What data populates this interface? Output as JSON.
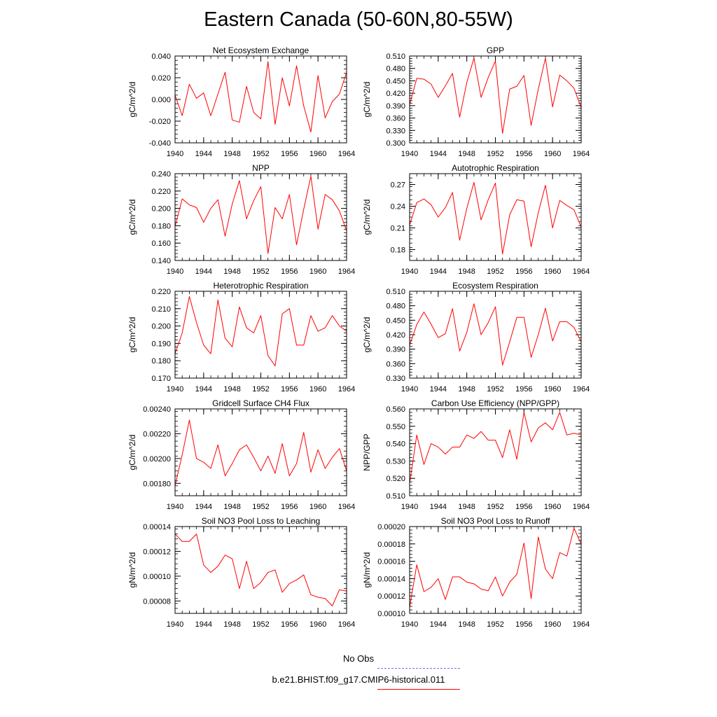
{
  "title": "Eastern Canada (50-60N,80-55W)",
  "colors": {
    "model": "#ff0000",
    "obs": "#7b68ee",
    "axis": "#000000"
  },
  "legend": {
    "items": [
      {
        "label": "No Obs",
        "style": "dashed",
        "color": "#7b68ee"
      },
      {
        "label": "b.e21.BHIST.f09_g17.CMIP6-historical.011",
        "style": "solid",
        "color": "#ff0000"
      }
    ]
  },
  "chart_data": [
    {
      "type": "line",
      "title": "Net Ecosystem Exchange",
      "ylabel": "gC/m^2/d",
      "xlim": [
        1940,
        1964
      ],
      "ylim": [
        -0.04,
        0.04
      ],
      "xticks": [
        "1940",
        "1944",
        "1948",
        "1952",
        "1956",
        "1960",
        "1964"
      ],
      "yticks": [
        "-0.040",
        "-0.020",
        "0.000",
        "0.020",
        "0.040"
      ],
      "x": [
        1940,
        1941,
        1942,
        1943,
        1944,
        1945,
        1946,
        1947,
        1948,
        1949,
        1950,
        1951,
        1952,
        1953,
        1954,
        1955,
        1956,
        1957,
        1958,
        1959,
        1960,
        1961,
        1962,
        1963,
        1964
      ],
      "series": [
        {
          "name": "b.e21.BHIST.f09_g17.CMIP6-historical.011",
          "values": [
            0.004,
            -0.015,
            0.014,
            0.001,
            0.006,
            -0.015,
            0.005,
            0.025,
            -0.019,
            -0.021,
            0.012,
            -0.012,
            -0.018,
            0.035,
            -0.023,
            0.02,
            -0.006,
            0.031,
            -0.006,
            -0.03,
            0.022,
            -0.017,
            -0.002,
            0.005,
            0.025
          ]
        }
      ]
    },
    {
      "type": "line",
      "title": "GPP",
      "ylabel": "gC/m^2/d",
      "xlim": [
        1940,
        1964
      ],
      "ylim": [
        0.3,
        0.51
      ],
      "xticks": [
        "1940",
        "1944",
        "1948",
        "1952",
        "1956",
        "1960",
        "1964"
      ],
      "yticks": [
        "0.300",
        "0.330",
        "0.360",
        "0.390",
        "0.420",
        "0.450",
        "0.480",
        "0.510"
      ],
      "x": [
        1940,
        1941,
        1942,
        1943,
        1944,
        1945,
        1946,
        1947,
        1948,
        1949,
        1950,
        1951,
        1952,
        1953,
        1954,
        1955,
        1956,
        1957,
        1958,
        1959,
        1960,
        1961,
        1962,
        1963,
        1964
      ],
      "series": [
        {
          "name": "b.e21.BHIST.f09_g17.CMIP6-historical.011",
          "values": [
            0.392,
            0.456,
            0.454,
            0.442,
            0.41,
            0.438,
            0.468,
            0.362,
            0.446,
            0.505,
            0.41,
            0.458,
            0.498,
            0.323,
            0.43,
            0.437,
            0.463,
            0.342,
            0.43,
            0.505,
            0.387,
            0.464,
            0.45,
            0.432,
            0.385
          ]
        }
      ]
    },
    {
      "type": "line",
      "title": "NPP",
      "ylabel": "gC/m^2/d",
      "xlim": [
        1940,
        1964
      ],
      "ylim": [
        0.14,
        0.24
      ],
      "xticks": [
        "1940",
        "1944",
        "1948",
        "1952",
        "1956",
        "1960",
        "1964"
      ],
      "yticks": [
        "0.140",
        "0.160",
        "0.180",
        "0.200",
        "0.220",
        "0.240"
      ],
      "x": [
        1940,
        1941,
        1942,
        1943,
        1944,
        1945,
        1946,
        1947,
        1948,
        1949,
        1950,
        1951,
        1952,
        1953,
        1954,
        1955,
        1956,
        1957,
        1958,
        1959,
        1960,
        1961,
        1962,
        1963,
        1964
      ],
      "series": [
        {
          "name": "b.e21.BHIST.f09_g17.CMIP6-historical.011",
          "values": [
            0.179,
            0.211,
            0.204,
            0.201,
            0.184,
            0.2,
            0.21,
            0.168,
            0.205,
            0.232,
            0.188,
            0.209,
            0.225,
            0.148,
            0.201,
            0.188,
            0.216,
            0.158,
            0.199,
            0.237,
            0.176,
            0.216,
            0.21,
            0.197,
            0.174
          ]
        }
      ]
    },
    {
      "type": "line",
      "title": "Autotrophic Respiration",
      "ylabel": "gC/m^2/d",
      "xlim": [
        1940,
        1964
      ],
      "ylim": [
        0.165,
        0.285
      ],
      "xticks": [
        "1940",
        "1944",
        "1948",
        "1952",
        "1956",
        "1960",
        "1964"
      ],
      "yticks": [
        "0.18",
        "0.21",
        "0.24",
        "0.27"
      ],
      "x": [
        1940,
        1941,
        1942,
        1943,
        1944,
        1945,
        1946,
        1947,
        1948,
        1949,
        1950,
        1951,
        1952,
        1953,
        1954,
        1955,
        1956,
        1957,
        1958,
        1959,
        1960,
        1961,
        1962,
        1963,
        1964
      ],
      "series": [
        {
          "name": "b.e21.BHIST.f09_g17.CMIP6-historical.011",
          "values": [
            0.214,
            0.245,
            0.25,
            0.242,
            0.225,
            0.238,
            0.259,
            0.193,
            0.237,
            0.273,
            0.221,
            0.249,
            0.272,
            0.174,
            0.228,
            0.249,
            0.247,
            0.184,
            0.231,
            0.269,
            0.21,
            0.248,
            0.241,
            0.235,
            0.211
          ]
        }
      ]
    },
    {
      "type": "line",
      "title": "Heterotrophic Respiration",
      "ylabel": "gC/m^2/d",
      "xlim": [
        1940,
        1964
      ],
      "ylim": [
        0.17,
        0.22
      ],
      "xticks": [
        "1940",
        "1944",
        "1948",
        "1952",
        "1956",
        "1960",
        "1964"
      ],
      "yticks": [
        "0.170",
        "0.180",
        "0.190",
        "0.200",
        "0.210",
        "0.220"
      ],
      "x": [
        1940,
        1941,
        1942,
        1943,
        1944,
        1945,
        1946,
        1947,
        1948,
        1949,
        1950,
        1951,
        1952,
        1953,
        1954,
        1955,
        1956,
        1957,
        1958,
        1959,
        1960,
        1961,
        1962,
        1963,
        1964
      ],
      "series": [
        {
          "name": "b.e21.BHIST.f09_g17.CMIP6-historical.011",
          "values": [
            0.184,
            0.196,
            0.217,
            0.202,
            0.189,
            0.184,
            0.215,
            0.193,
            0.188,
            0.211,
            0.199,
            0.196,
            0.206,
            0.183,
            0.177,
            0.207,
            0.21,
            0.189,
            0.189,
            0.206,
            0.197,
            0.199,
            0.206,
            0.2,
            0.197
          ]
        }
      ]
    },
    {
      "type": "line",
      "title": "Ecosystem Respiration",
      "ylabel": "gC/m^2/d",
      "xlim": [
        1940,
        1964
      ],
      "ylim": [
        0.33,
        0.51
      ],
      "xticks": [
        "1940",
        "1944",
        "1948",
        "1952",
        "1956",
        "1960",
        "1964"
      ],
      "yticks": [
        "0.330",
        "0.360",
        "0.390",
        "0.420",
        "0.450",
        "0.480",
        "0.510"
      ],
      "x": [
        1940,
        1941,
        1942,
        1943,
        1944,
        1945,
        1946,
        1947,
        1948,
        1949,
        1950,
        1951,
        1952,
        1953,
        1954,
        1955,
        1956,
        1957,
        1958,
        1959,
        1960,
        1961,
        1962,
        1963,
        1964
      ],
      "series": [
        {
          "name": "b.e21.BHIST.f09_g17.CMIP6-historical.011",
          "values": [
            0.398,
            0.441,
            0.467,
            0.442,
            0.414,
            0.422,
            0.474,
            0.386,
            0.425,
            0.484,
            0.42,
            0.445,
            0.478,
            0.357,
            0.405,
            0.456,
            0.456,
            0.373,
            0.42,
            0.475,
            0.407,
            0.447,
            0.447,
            0.435,
            0.405
          ]
        }
      ]
    },
    {
      "type": "line",
      "title": "Gridcell Surface CH4 Flux",
      "ylabel": "gC/m^2/d",
      "xlim": [
        1940,
        1964
      ],
      "ylim": [
        0.0017,
        0.0024
      ],
      "xticks": [
        "1940",
        "1944",
        "1948",
        "1952",
        "1956",
        "1960",
        "1964"
      ],
      "yticks": [
        "0.00180",
        "0.00200",
        "0.00220",
        "0.00240"
      ],
      "x": [
        1940,
        1941,
        1942,
        1943,
        1944,
        1945,
        1946,
        1947,
        1948,
        1949,
        1950,
        1951,
        1952,
        1953,
        1954,
        1955,
        1956,
        1957,
        1958,
        1959,
        1960,
        1961,
        1962,
        1963,
        1964
      ],
      "series": [
        {
          "name": "b.e21.BHIST.f09_g17.CMIP6-historical.011",
          "values": [
            0.00178,
            0.00203,
            0.00231,
            0.002,
            0.00197,
            0.00192,
            0.00211,
            0.00186,
            0.00196,
            0.00207,
            0.00211,
            0.00201,
            0.0019,
            0.00202,
            0.00188,
            0.00212,
            0.00186,
            0.00196,
            0.00221,
            0.00189,
            0.00207,
            0.00192,
            0.00201,
            0.00208,
            0.0019
          ]
        }
      ]
    },
    {
      "type": "line",
      "title": "Carbon Use Efficiency (NPP/GPP)",
      "ylabel": "NPP/GPP",
      "xlim": [
        1940,
        1964
      ],
      "ylim": [
        0.51,
        0.56
      ],
      "xticks": [
        "1940",
        "1944",
        "1948",
        "1952",
        "1956",
        "1960",
        "1964"
      ],
      "yticks": [
        "0.510",
        "0.520",
        "0.530",
        "0.540",
        "0.550",
        "0.560"
      ],
      "x": [
        1940,
        1941,
        1942,
        1943,
        1944,
        1945,
        1946,
        1947,
        1948,
        1949,
        1950,
        1951,
        1952,
        1953,
        1954,
        1955,
        1956,
        1957,
        1958,
        1959,
        1960,
        1961,
        1962,
        1963,
        1964
      ],
      "series": [
        {
          "name": "b.e21.BHIST.f09_g17.CMIP6-historical.011",
          "values": [
            0.517,
            0.545,
            0.528,
            0.54,
            0.538,
            0.534,
            0.538,
            0.538,
            0.545,
            0.543,
            0.547,
            0.542,
            0.542,
            0.532,
            0.548,
            0.531,
            0.558,
            0.541,
            0.549,
            0.552,
            0.548,
            0.558,
            0.545,
            0.546,
            0.545
          ]
        }
      ]
    },
    {
      "type": "line",
      "title": "Soil NO3 Pool Loss to Leaching",
      "ylabel": "gN/m^2/d",
      "xlim": [
        1940,
        1964
      ],
      "ylim": [
        7e-05,
        0.00014
      ],
      "xticks": [
        "1940",
        "1944",
        "1948",
        "1952",
        "1956",
        "1960",
        "1964"
      ],
      "yticks": [
        "0.00008",
        "0.00010",
        "0.00012",
        "0.00014"
      ],
      "x": [
        1940,
        1941,
        1942,
        1943,
        1944,
        1945,
        1946,
        1947,
        1948,
        1949,
        1950,
        1951,
        1952,
        1953,
        1954,
        1955,
        1956,
        1957,
        1958,
        1959,
        1960,
        1961,
        1962,
        1963,
        1964
      ],
      "series": [
        {
          "name": "b.e21.BHIST.f09_g17.CMIP6-historical.011",
          "values": [
            0.000134,
            0.000128,
            0.000128,
            0.000134,
            0.000109,
            0.000103,
            0.000108,
            0.000117,
            0.000114,
            9e-05,
            0.000112,
            9e-05,
            9.5e-05,
            0.000103,
            0.000105,
            8.7e-05,
            9.4e-05,
            9.7e-05,
            0.000101,
            8.5e-05,
            8.3e-05,
            8.2e-05,
            7.6e-05,
            8.9e-05,
            8.8e-05
          ]
        }
      ]
    },
    {
      "type": "line",
      "title": "Soil NO3 Pool Loss to Runoff",
      "ylabel": "gN/m^2/d",
      "xlim": [
        1940,
        1964
      ],
      "ylim": [
        0.0001,
        0.0002
      ],
      "xticks": [
        "1940",
        "1944",
        "1948",
        "1952",
        "1956",
        "1960",
        "1964"
      ],
      "yticks": [
        "0.00010",
        "0.00012",
        "0.00014",
        "0.00016",
        "0.00018",
        "0.00020"
      ],
      "x": [
        1940,
        1941,
        1942,
        1943,
        1944,
        1945,
        1946,
        1947,
        1948,
        1949,
        1950,
        1951,
        1952,
        1953,
        1954,
        1955,
        1956,
        1957,
        1958,
        1959,
        1960,
        1961,
        1962,
        1963,
        1964
      ],
      "series": [
        {
          "name": "b.e21.BHIST.f09_g17.CMIP6-historical.011",
          "values": [
            0.000107,
            0.000156,
            0.000125,
            0.00013,
            0.00014,
            0.000116,
            0.000142,
            0.000142,
            0.000136,
            0.000134,
            0.000128,
            0.000126,
            0.000142,
            0.00012,
            0.000136,
            0.000145,
            0.000181,
            0.000117,
            0.000188,
            0.000151,
            0.00014,
            0.00017,
            0.000166,
            0.000198,
            0.00018
          ]
        }
      ]
    }
  ]
}
